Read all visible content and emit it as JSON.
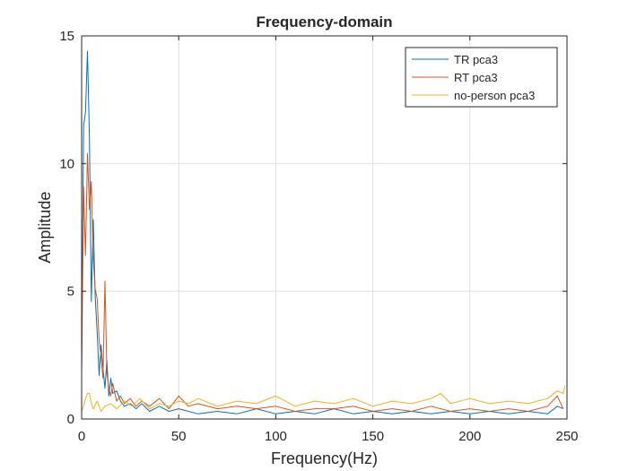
{
  "chart_data": {
    "type": "line",
    "title": "Frequency-domain",
    "xlabel": "Frequency(Hz)",
    "ylabel": "Amplitude",
    "xlim": [
      0,
      250
    ],
    "ylim": [
      0,
      15
    ],
    "xticks": [
      0,
      50,
      100,
      150,
      200,
      250
    ],
    "yticks": [
      0,
      5,
      10,
      15
    ],
    "grid": true,
    "legend_position": "top-right",
    "series": [
      {
        "name": "TR pca3",
        "color": "#0072BD",
        "x": [
          0,
          1,
          2,
          3,
          4,
          5,
          6,
          7,
          8,
          9,
          10,
          11,
          12,
          13,
          14,
          15,
          16,
          18,
          20,
          22,
          25,
          28,
          31,
          35,
          40,
          45,
          50,
          60,
          70,
          80,
          90,
          100,
          110,
          120,
          130,
          140,
          150,
          160,
          170,
          180,
          190,
          200,
          210,
          220,
          230,
          240,
          245,
          248
        ],
        "y": [
          2.0,
          11.5,
          12.0,
          14.4,
          11.0,
          4.6,
          7.8,
          4.8,
          3.4,
          1.7,
          2.9,
          2.0,
          1.2,
          2.3,
          0.9,
          1.6,
          1.0,
          1.1,
          0.7,
          0.5,
          0.6,
          0.4,
          0.6,
          0.3,
          0.5,
          0.3,
          0.4,
          0.2,
          0.3,
          0.2,
          0.4,
          0.2,
          0.3,
          0.2,
          0.4,
          0.2,
          0.3,
          0.2,
          0.3,
          0.2,
          0.3,
          0.2,
          0.3,
          0.2,
          0.3,
          0.2,
          0.5,
          0.4
        ]
      },
      {
        "name": "RT pca3",
        "color": "#D95319",
        "x": [
          0,
          1,
          2,
          3,
          4,
          5,
          6,
          7,
          8,
          9,
          10,
          11,
          12,
          13,
          14,
          15,
          16,
          18,
          20,
          22,
          25,
          28,
          31,
          35,
          40,
          45,
          50,
          55,
          60,
          70,
          80,
          90,
          100,
          110,
          120,
          130,
          140,
          150,
          160,
          170,
          180,
          190,
          200,
          210,
          220,
          230,
          240,
          245,
          248
        ],
        "y": [
          1.8,
          9.1,
          6.4,
          10.4,
          8.2,
          9.3,
          6.2,
          5.1,
          4.7,
          3.1,
          2.4,
          1.6,
          5.4,
          1.8,
          1.2,
          0.9,
          1.4,
          0.7,
          0.9,
          0.6,
          0.8,
          0.5,
          0.7,
          0.5,
          0.8,
          0.4,
          0.9,
          0.5,
          0.6,
          0.4,
          0.5,
          0.4,
          0.5,
          0.3,
          0.4,
          0.4,
          0.5,
          0.3,
          0.4,
          0.3,
          0.5,
          0.3,
          0.4,
          0.3,
          0.4,
          0.3,
          0.5,
          0.9,
          0.4
        ]
      },
      {
        "name": "no-person pca3",
        "color": "#EDB120",
        "x": [
          0,
          1,
          2,
          3,
          4,
          5,
          6,
          8,
          10,
          12,
          15,
          18,
          22,
          26,
          30,
          35,
          40,
          45,
          50,
          55,
          60,
          70,
          80,
          90,
          100,
          110,
          120,
          130,
          140,
          150,
          160,
          170,
          180,
          185,
          190,
          200,
          210,
          220,
          230,
          240,
          245,
          248,
          249
        ],
        "y": [
          0.3,
          0.5,
          0.8,
          1.0,
          1.0,
          0.6,
          0.4,
          0.7,
          0.3,
          0.5,
          0.6,
          0.4,
          0.7,
          0.5,
          0.8,
          0.4,
          0.6,
          0.5,
          0.7,
          0.6,
          0.8,
          0.5,
          0.7,
          0.6,
          0.9,
          0.5,
          0.7,
          0.6,
          0.8,
          0.5,
          0.7,
          0.6,
          0.8,
          1.0,
          0.6,
          0.8,
          0.6,
          0.7,
          0.6,
          0.8,
          1.1,
          1.0,
          1.3
        ]
      }
    ]
  }
}
